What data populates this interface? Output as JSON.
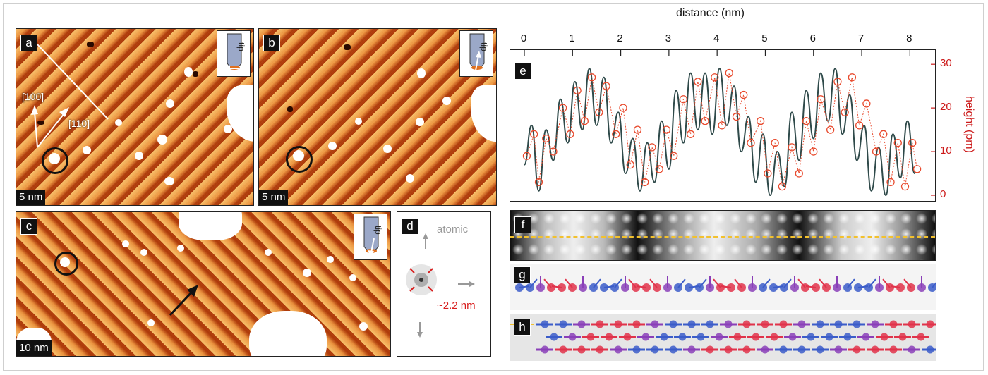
{
  "panels": {
    "a": {
      "label": "a",
      "scale": "5 nm",
      "dir1": "[100]",
      "dir2": "[110]"
    },
    "b": {
      "label": "b",
      "scale": "5 nm"
    },
    "c": {
      "label": "c",
      "scale": "10 nm"
    },
    "d": {
      "label": "d",
      "atomic": "atomic",
      "period": "~2.2 nm"
    },
    "e": {
      "label": "e"
    },
    "f": {
      "label": "f"
    },
    "g": {
      "label": "g"
    },
    "h": {
      "label": "h"
    }
  },
  "tip_label": "tip",
  "colors": {
    "stm_base": "#d2581b",
    "profile_points": "#e8492c",
    "fit_line": "#2f4a4a",
    "axis_red": "#cc1a1a",
    "dash_line": "#f2c12e",
    "spin_blue": "#3b5cc9",
    "spin_red": "#e0334a",
    "spin_purple": "#8a3fb8"
  },
  "chart_data": {
    "type": "line",
    "xlabel": "distance (nm)",
    "ylabel": "height (pm)",
    "xlim": [
      0,
      8.2
    ],
    "ylim": [
      0,
      31
    ],
    "xticks": [
      0,
      1,
      2,
      3,
      4,
      5,
      6,
      7,
      8
    ],
    "yticks": [
      0,
      10,
      20,
      30
    ],
    "series": [
      {
        "style": "fit-line",
        "x": [
          0,
          0.15,
          0.3,
          0.45,
          0.6,
          0.75,
          0.9,
          1.05,
          1.2,
          1.35,
          1.5,
          1.65,
          1.8,
          1.95,
          2.1,
          2.25,
          2.4,
          2.55,
          2.7,
          2.85,
          3.0,
          3.15,
          3.3,
          3.45,
          3.6,
          3.75,
          3.9,
          4.05,
          4.2,
          4.35,
          4.5,
          4.65,
          4.8,
          4.95,
          5.1,
          5.25,
          5.4,
          5.55,
          5.7,
          5.85,
          6.0,
          6.15,
          6.3,
          6.45,
          6.6,
          6.75,
          6.9,
          7.05,
          7.2,
          7.35,
          7.5,
          7.65,
          7.8,
          7.95,
          8.1
        ],
        "values": [
          7,
          16,
          1,
          15,
          8,
          22,
          12,
          26,
          15,
          29,
          16,
          27,
          12,
          19,
          5,
          13,
          1,
          12,
          3,
          17,
          6,
          24,
          12,
          28,
          15,
          28,
          14,
          29,
          16,
          25,
          10,
          18,
          3,
          14,
          0,
          10,
          2,
          19,
          8,
          24,
          13,
          28,
          17,
          29,
          14,
          23,
          8,
          16,
          1,
          11,
          0,
          14,
          4,
          17,
          5
        ]
      },
      {
        "style": "measured-points",
        "x": [
          0.05,
          0.2,
          0.3,
          0.45,
          0.6,
          0.8,
          0.95,
          1.1,
          1.25,
          1.4,
          1.55,
          1.7,
          1.9,
          2.05,
          2.2,
          2.35,
          2.5,
          2.65,
          2.8,
          2.95,
          3.1,
          3.3,
          3.45,
          3.6,
          3.75,
          3.95,
          4.1,
          4.25,
          4.4,
          4.55,
          4.7,
          4.9,
          5.05,
          5.2,
          5.35,
          5.55,
          5.7,
          5.85,
          6.0,
          6.15,
          6.35,
          6.5,
          6.65,
          6.8,
          6.95,
          7.1,
          7.3,
          7.45,
          7.6,
          7.75,
          7.9,
          8.05,
          8.15
        ],
        "values": [
          9,
          14,
          3,
          13,
          10,
          20,
          14,
          24,
          17,
          27,
          19,
          25,
          14,
          20,
          7,
          15,
          3,
          11,
          6,
          15,
          9,
          22,
          14,
          26,
          17,
          27,
          16,
          28,
          18,
          23,
          12,
          17,
          5,
          12,
          2,
          11,
          5,
          17,
          10,
          22,
          15,
          26,
          19,
          27,
          16,
          21,
          10,
          14,
          3,
          12,
          2,
          12,
          6
        ]
      }
    ]
  }
}
